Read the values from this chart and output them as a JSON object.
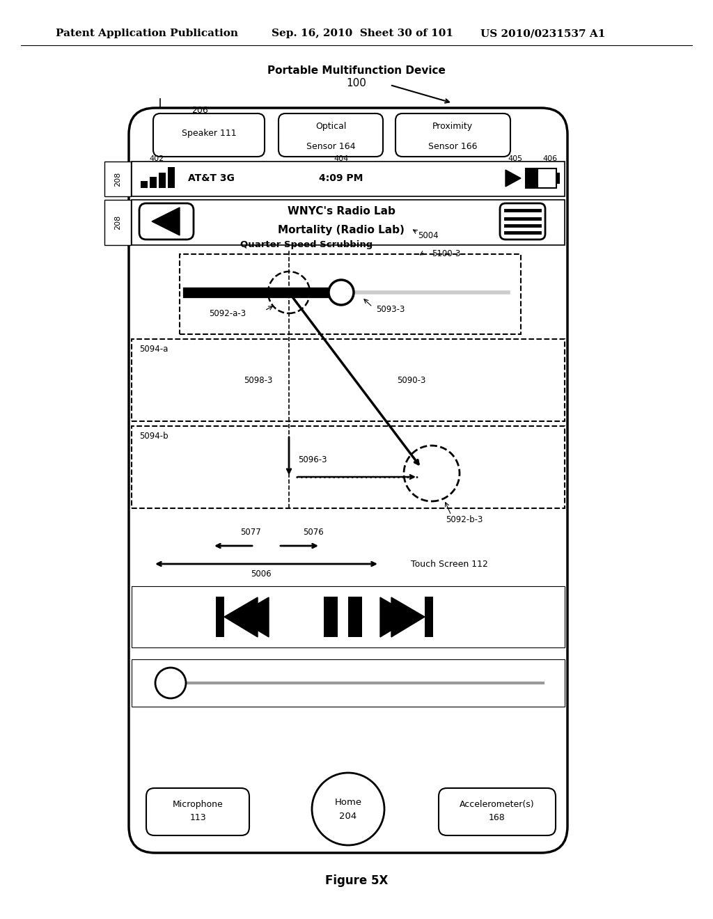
{
  "bg_color": "#ffffff",
  "page_header_left": "Patent Application Publication",
  "page_header_mid": "Sep. 16, 2010  Sheet 30 of 101",
  "page_header_right": "US 2010/0231537 A1",
  "figure_label": "Figure 5X"
}
